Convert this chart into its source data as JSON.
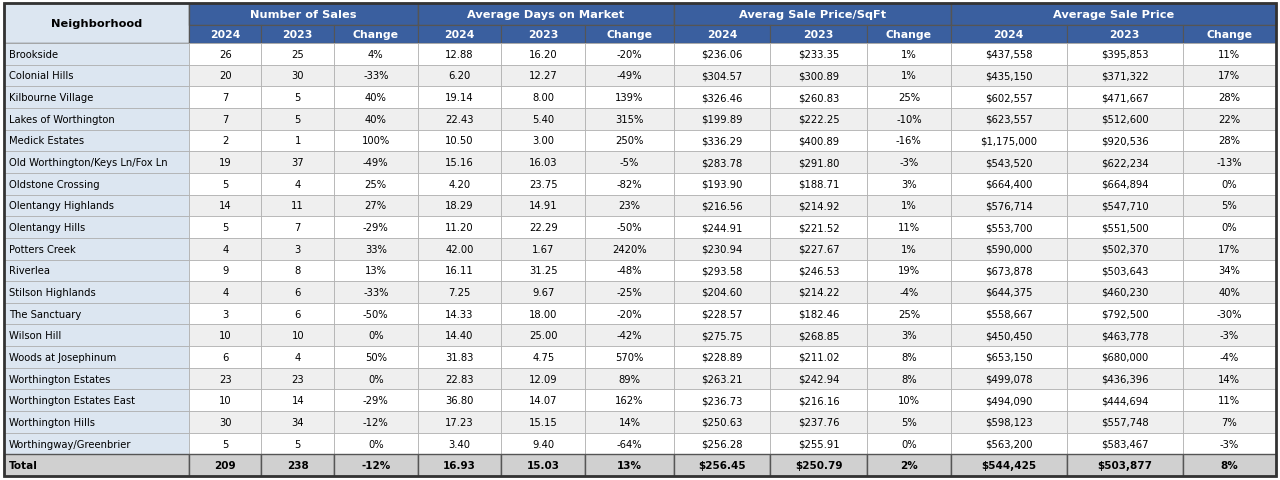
{
  "neighborhoods": [
    "Brookside",
    "Colonial Hills",
    "Kilbourne Village",
    "Lakes of Worthington",
    "Medick Estates",
    "Old Worthington/Keys Ln/Fox Ln",
    "Oldstone Crossing",
    "Olentangy Highlands",
    "Olentangy Hills",
    "Potters Creek",
    "Riverlea",
    "Stilson Highlands",
    "The Sanctuary",
    "Wilson Hill",
    "Woods at Josephinum",
    "Worthington Estates",
    "Worthington Estates East",
    "Worthington Hills",
    "Worthingway/Greenbrier",
    "Total"
  ],
  "num_sales_2024": [
    "26",
    "20",
    "7",
    "7",
    "2",
    "19",
    "5",
    "14",
    "5",
    "4",
    "9",
    "4",
    "3",
    "10",
    "6",
    "23",
    "10",
    "30",
    "5",
    "209"
  ],
  "num_sales_2023": [
    "25",
    "30",
    "5",
    "5",
    "1",
    "37",
    "4",
    "11",
    "7",
    "3",
    "8",
    "6",
    "6",
    "10",
    "4",
    "23",
    "14",
    "34",
    "5",
    "238"
  ],
  "num_sales_change": [
    "4%",
    "-33%",
    "40%",
    "40%",
    "100%",
    "-49%",
    "25%",
    "27%",
    "-29%",
    "33%",
    "13%",
    "-33%",
    "-50%",
    "0%",
    "50%",
    "0%",
    "-29%",
    "-12%",
    "0%",
    "-12%"
  ],
  "avg_dom_2024": [
    "12.88",
    "6.20",
    "19.14",
    "22.43",
    "10.50",
    "15.16",
    "4.20",
    "18.29",
    "11.20",
    "42.00",
    "16.11",
    "7.25",
    "14.33",
    "14.40",
    "31.83",
    "22.83",
    "36.80",
    "17.23",
    "3.40",
    "16.93"
  ],
  "avg_dom_2023": [
    "16.20",
    "12.27",
    "8.00",
    "5.40",
    "3.00",
    "16.03",
    "23.75",
    "14.91",
    "22.29",
    "1.67",
    "31.25",
    "9.67",
    "18.00",
    "25.00",
    "4.75",
    "12.09",
    "14.07",
    "15.15",
    "9.40",
    "15.03"
  ],
  "avg_dom_change": [
    "-20%",
    "-49%",
    "139%",
    "315%",
    "250%",
    "-5%",
    "-82%",
    "23%",
    "-50%",
    "2420%",
    "-48%",
    "-25%",
    "-20%",
    "-42%",
    "570%",
    "89%",
    "162%",
    "14%",
    "-64%",
    "13%"
  ],
  "avg_price_sqft_2024": [
    "$236.06",
    "$304.57",
    "$326.46",
    "$199.89",
    "$336.29",
    "$283.78",
    "$193.90",
    "$216.56",
    "$244.91",
    "$230.94",
    "$293.58",
    "$204.60",
    "$228.57",
    "$275.75",
    "$228.89",
    "$263.21",
    "$236.73",
    "$250.63",
    "$256.28",
    "$256.45"
  ],
  "avg_price_sqft_2023": [
    "$233.35",
    "$300.89",
    "$260.83",
    "$222.25",
    "$400.89",
    "$291.80",
    "$188.71",
    "$214.92",
    "$221.52",
    "$227.67",
    "$246.53",
    "$214.22",
    "$182.46",
    "$268.85",
    "$211.02",
    "$242.94",
    "$216.16",
    "$237.76",
    "$255.91",
    "$250.79"
  ],
  "avg_price_sqft_change": [
    "1%",
    "1%",
    "25%",
    "-10%",
    "-16%",
    "-3%",
    "3%",
    "1%",
    "11%",
    "1%",
    "19%",
    "-4%",
    "25%",
    "3%",
    "8%",
    "8%",
    "10%",
    "5%",
    "0%",
    "2%"
  ],
  "avg_sale_price_2024": [
    "$437,558",
    "$435,150",
    "$602,557",
    "$623,557",
    "$1,175,000",
    "$543,520",
    "$664,400",
    "$576,714",
    "$553,700",
    "$590,000",
    "$673,878",
    "$644,375",
    "$558,667",
    "$450,450",
    "$653,150",
    "$499,078",
    "$494,090",
    "$598,123",
    "$563,200",
    "$544,425"
  ],
  "avg_sale_price_2023": [
    "$395,853",
    "$371,322",
    "$471,667",
    "$512,600",
    "$920,536",
    "$622,234",
    "$664,894",
    "$547,710",
    "$551,500",
    "$502,370",
    "$503,643",
    "$460,230",
    "$792,500",
    "$463,778",
    "$680,000",
    "$436,396",
    "$444,694",
    "$557,748",
    "$583,467",
    "$503,877"
  ],
  "avg_sale_price_change": [
    "11%",
    "17%",
    "28%",
    "22%",
    "28%",
    "-13%",
    "0%",
    "5%",
    "0%",
    "17%",
    "34%",
    "40%",
    "-30%",
    "-3%",
    "-4%",
    "14%",
    "11%",
    "7%",
    "-3%",
    "8%"
  ],
  "header_bg": "#3a5f9f",
  "header_text": "#ffffff",
  "neighborhood_col_bg": "#dce6f1",
  "row_bg_white": "#ffffff",
  "row_bg_gray": "#efefef",
  "total_row_bg": "#d0d0d0",
  "border_thin": "#aaaaaa",
  "border_thick": "#555555"
}
